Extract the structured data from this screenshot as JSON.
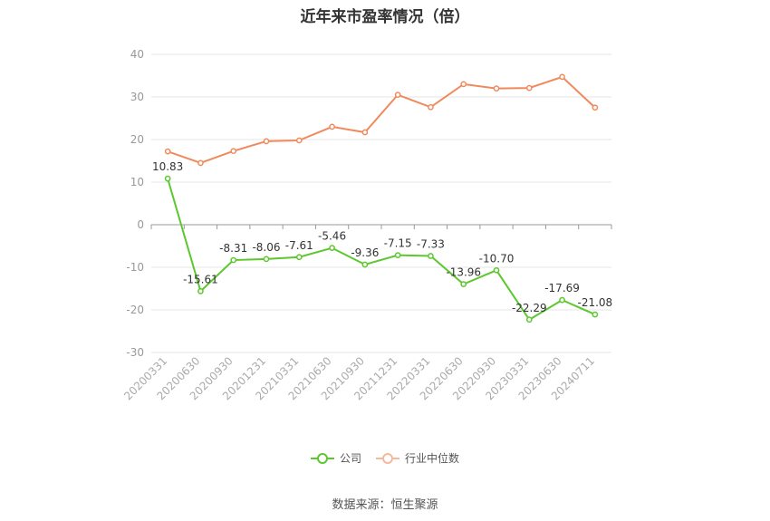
{
  "chart_data": {
    "type": "line",
    "title": "近年来市盈率情况（倍）",
    "categories": [
      "20200331",
      "20200630",
      "20200930",
      "20201231",
      "20210331",
      "20210630",
      "20210930",
      "20211231",
      "20220331",
      "20220630",
      "20220930",
      "20230331",
      "20230630",
      "20240711"
    ],
    "series": [
      {
        "name": "公司",
        "color": "#5cc72e",
        "values": [
          10.83,
          -15.61,
          -8.31,
          -8.06,
          -7.61,
          -5.46,
          -9.36,
          -7.15,
          -7.33,
          -13.96,
          -10.7,
          -22.29,
          -17.69,
          -21.08
        ]
      },
      {
        "name": "行业中位数",
        "color": "#f08a5d",
        "values": [
          17.2,
          14.5,
          17.3,
          19.6,
          19.8,
          23.0,
          21.7,
          30.5,
          27.6,
          33.0,
          32.0,
          32.1,
          34.7,
          27.5
        ]
      }
    ],
    "yticks": [
      40,
      30,
      20,
      10,
      0,
      -10,
      -20,
      -30
    ],
    "ylim": [
      -30,
      40
    ],
    "grid": true,
    "legend_position": "bottom"
  },
  "source": "数据来源：恒生聚源"
}
